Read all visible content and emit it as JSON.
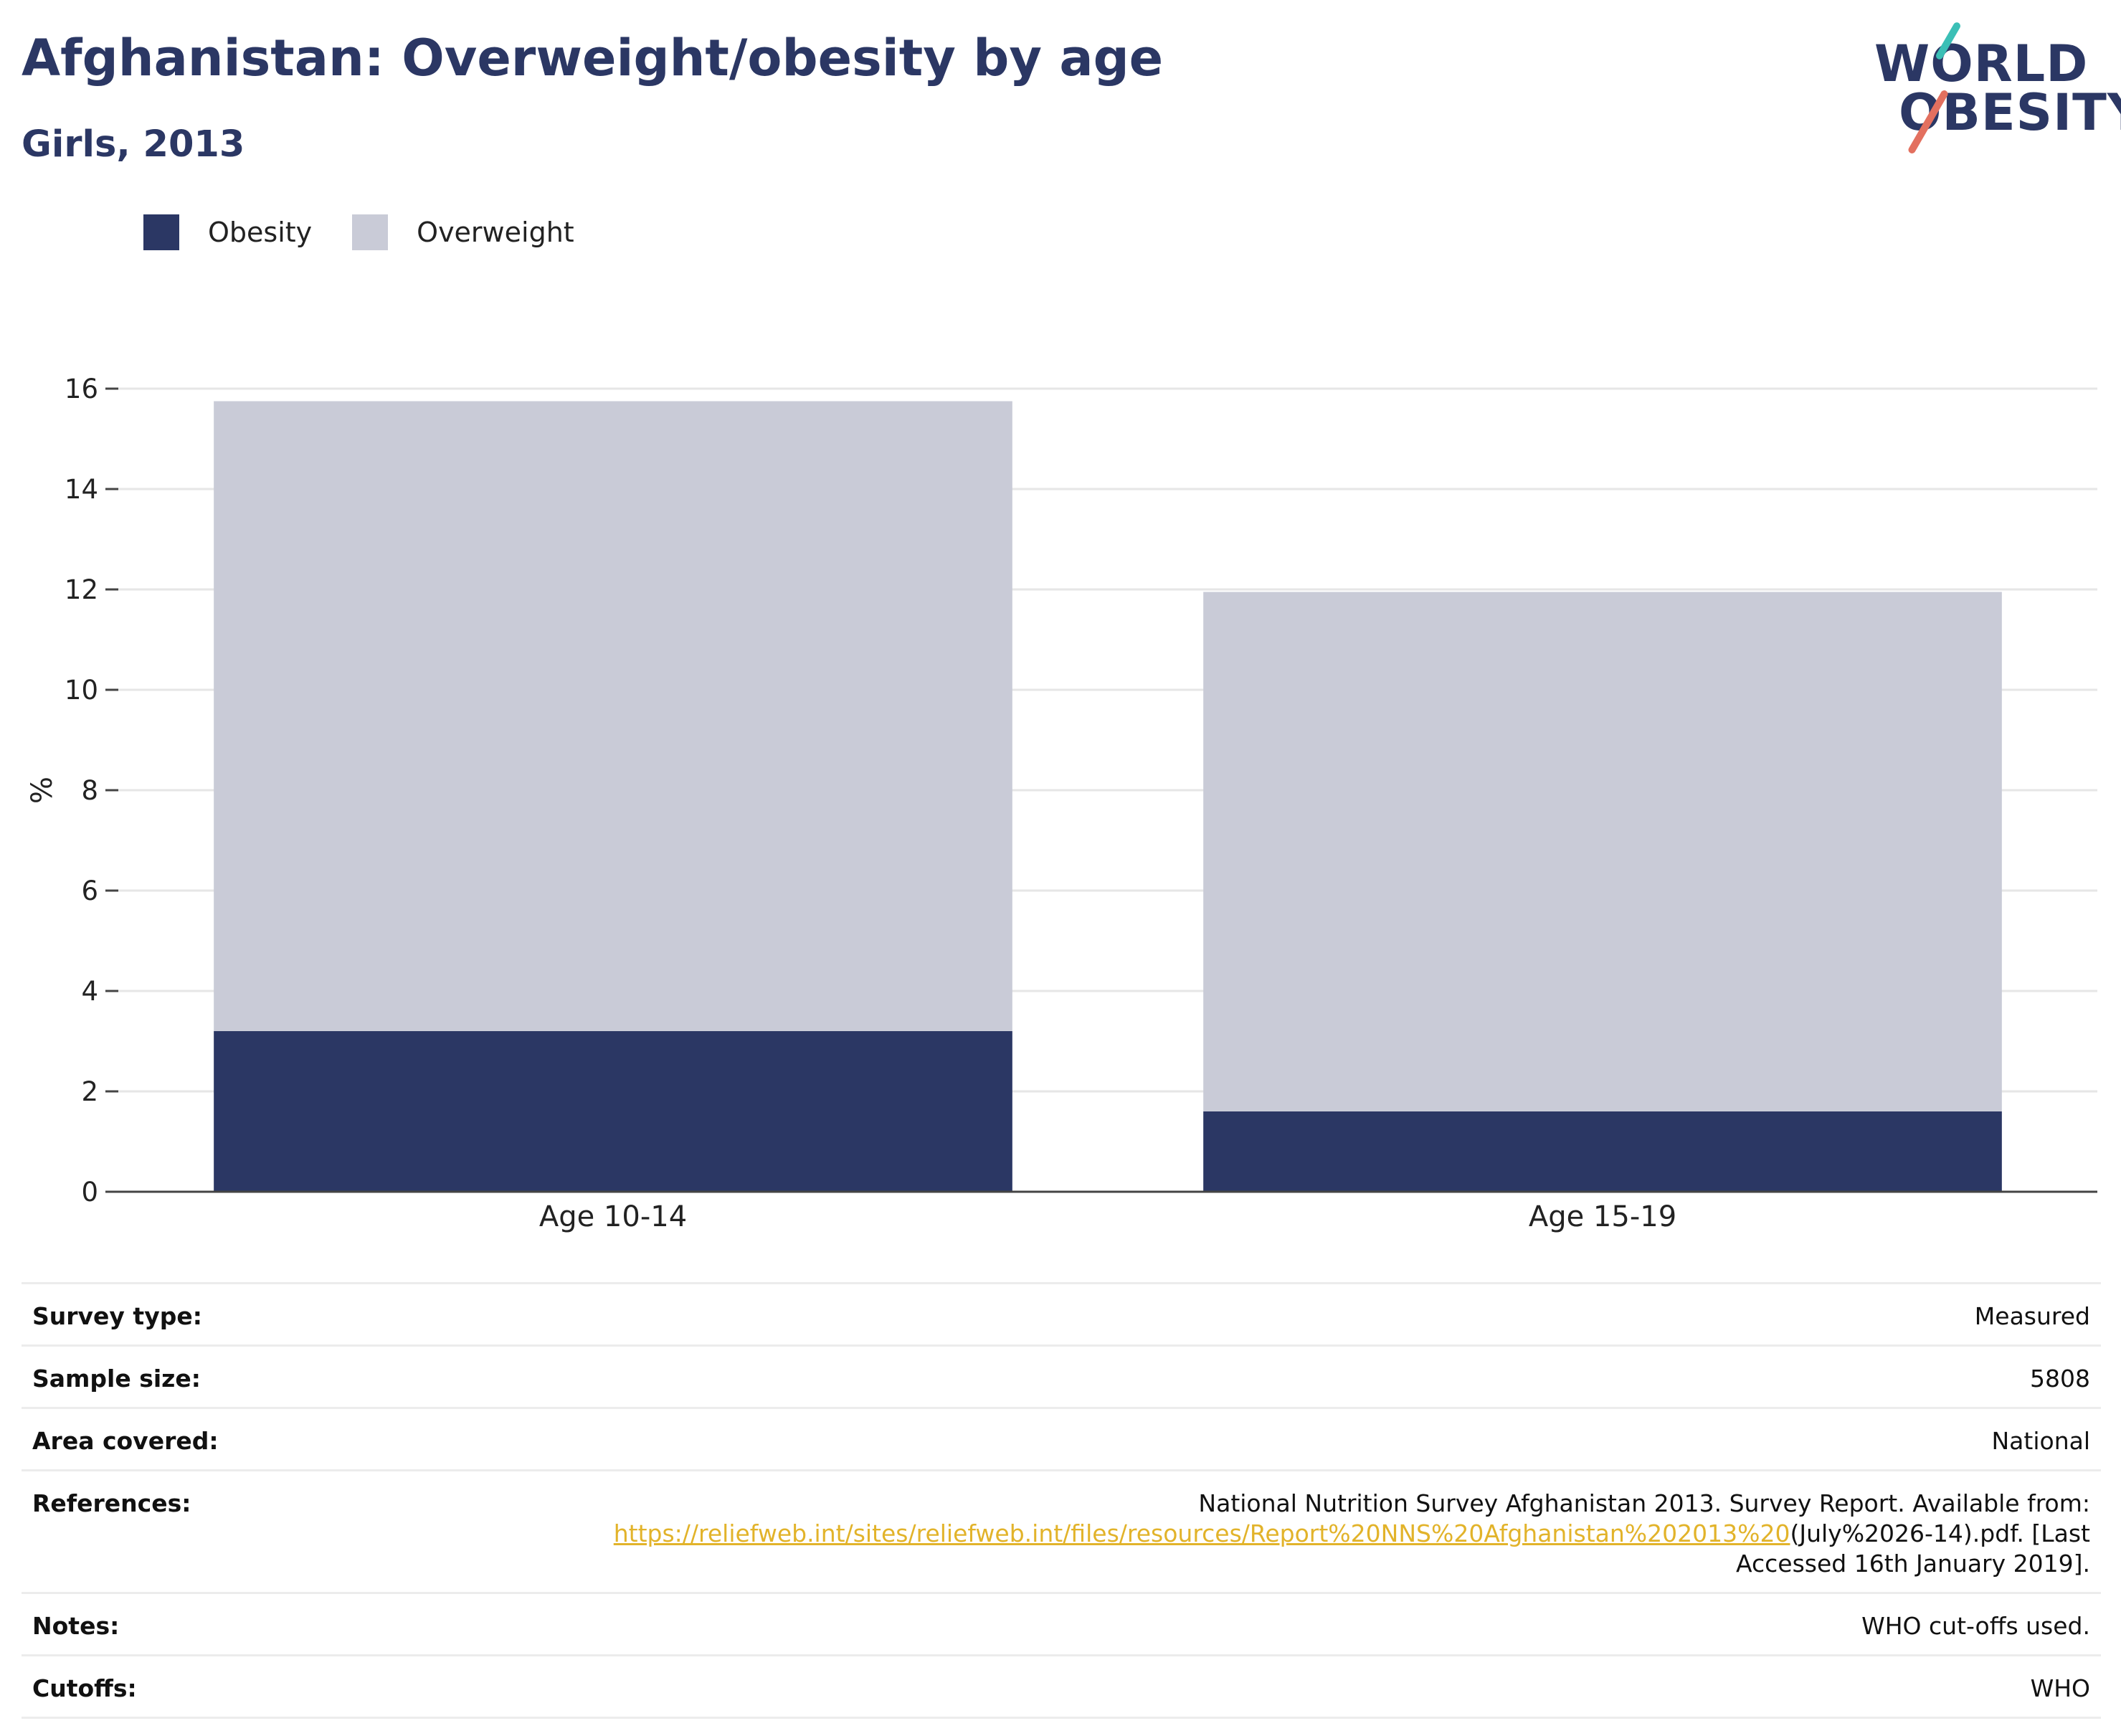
{
  "header": {
    "title": "Afghanistan: Overweight/obesity by age",
    "subtitle": "Girls, 2013"
  },
  "logo": {
    "line1": "WORLD",
    "line2": "OBESITY",
    "accent_colors": [
      "#3bbfb6",
      "#e3705f"
    ]
  },
  "legend": [
    {
      "label": "Obesity",
      "color": "#2b3764"
    },
    {
      "label": "Overweight",
      "color": "#c9cbd7"
    }
  ],
  "chart_data": {
    "type": "bar",
    "stacked": true,
    "categories": [
      "Age 10-14",
      "Age 15-19"
    ],
    "series": [
      {
        "name": "Obesity",
        "values": [
          3.2,
          1.6
        ],
        "color": "#2b3764"
      },
      {
        "name": "Overweight",
        "values": [
          12.55,
          10.35
        ],
        "color": "#c9cbd7"
      }
    ],
    "title": "Afghanistan: Overweight/obesity by age",
    "subtitle": "Girls, 2013",
    "xlabel": "",
    "ylabel": "%",
    "ylim": [
      0,
      16
    ],
    "yticks": [
      0,
      2,
      4,
      6,
      8,
      10,
      12,
      14,
      16
    ],
    "grid": true,
    "legend_position": "top-left"
  },
  "info": {
    "survey_type": {
      "label": "Survey type:",
      "value": "Measured"
    },
    "sample_size": {
      "label": "Sample size:",
      "value": "5808"
    },
    "area_covered": {
      "label": "Area covered:",
      "value": "National"
    },
    "references": {
      "label": "References:",
      "text_before": "National Nutrition Survey Afghanistan 2013. Survey Report. Available from:",
      "link": "https://reliefweb.int/sites/reliefweb.int/files/resources/Report%20NNS%20Afghanistan%202013%20",
      "text_after": "(July%2026-14).pdf. [Last",
      "text_end": "Accessed 16th January 2019].",
      "link_color": "#e2b32a"
    },
    "notes": {
      "label": "Notes:",
      "value": "WHO cut-offs used."
    },
    "cutoffs": {
      "label": "Cutoffs:",
      "value": "WHO"
    }
  }
}
